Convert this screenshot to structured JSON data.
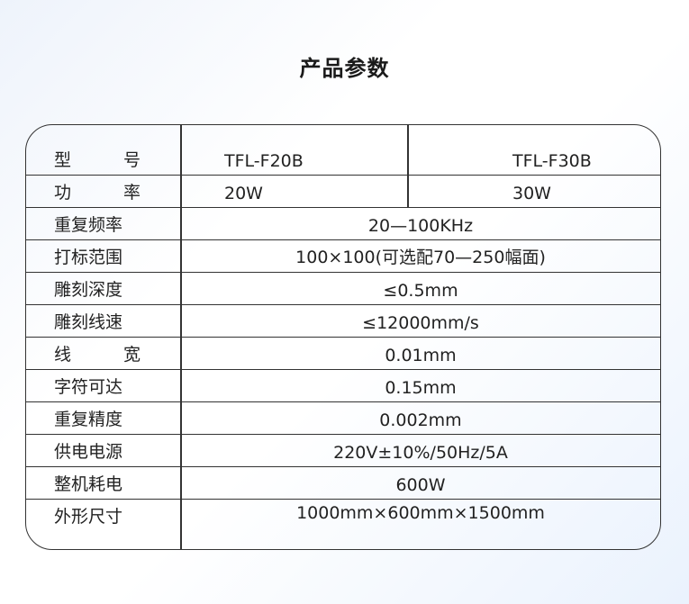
{
  "title": "产品参数",
  "header": {
    "label": [
      "型",
      "号"
    ],
    "models": [
      "TFL-F20B",
      "TFL-F30B"
    ]
  },
  "power": {
    "label": [
      "功",
      "率"
    ],
    "values": [
      "20W",
      "30W"
    ]
  },
  "rows": [
    {
      "label": "重复频率",
      "value": "20—100KHz"
    },
    {
      "label": "打标范围",
      "value": "100×100(可选配70—250幅面)"
    },
    {
      "label": "雕刻深度",
      "value": "≤0.5mm"
    },
    {
      "label": "雕刻线速",
      "value": "≤12000mm/s"
    },
    {
      "label": [
        "线",
        "宽"
      ],
      "value": "0.01mm"
    },
    {
      "label": "字符可达",
      "value": "0.15mm"
    },
    {
      "label": "重复精度",
      "value": "0.002mm"
    },
    {
      "label": "供电电源",
      "value": "220V±10%/50Hz/5A"
    },
    {
      "label": "整机耗电",
      "value": "600W"
    }
  ],
  "last": {
    "label": "外形尺寸",
    "value": "1000mm×600mm×1500mm"
  }
}
